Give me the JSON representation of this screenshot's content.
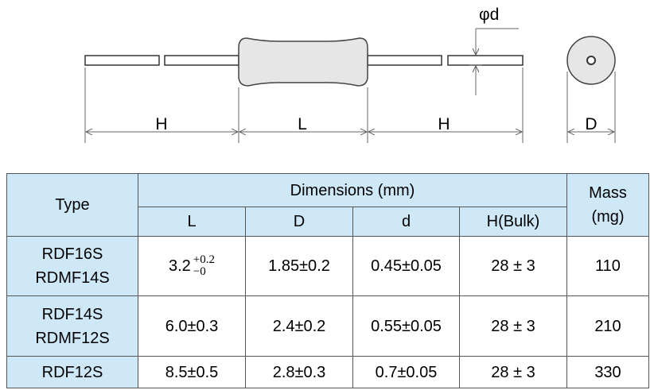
{
  "diagram": {
    "labels": [
      "H",
      "L",
      "H",
      "D"
    ],
    "lead_label": "φd"
  },
  "table": {
    "header": {
      "type": "Type",
      "dimensions": "Dimensions (mm)",
      "columns": [
        "L",
        "D",
        "d",
        "H(Bulk)"
      ],
      "mass": "Mass\n(mg)"
    },
    "rows": [
      [
        {
          "main": "3.2",
          "upper": "+0.2",
          "lower": "−0"
        },
        "1.85±0.2",
        "0.45±0.05",
        "28 ± 3",
        "110"
      ],
      [
        "6.0±0.3",
        "2.4±0.2",
        "0.55±0.05",
        "28 ± 3",
        "210"
      ],
      [
        "8.5±0.5",
        "2.8±0.3",
        "0.7±0.05",
        "28 ± 3",
        "330"
      ]
    ],
    "types": [
      "RDF16S\nRDMF14S",
      "RDF14S\nRDMF12S",
      "RDF12S"
    ]
  }
}
